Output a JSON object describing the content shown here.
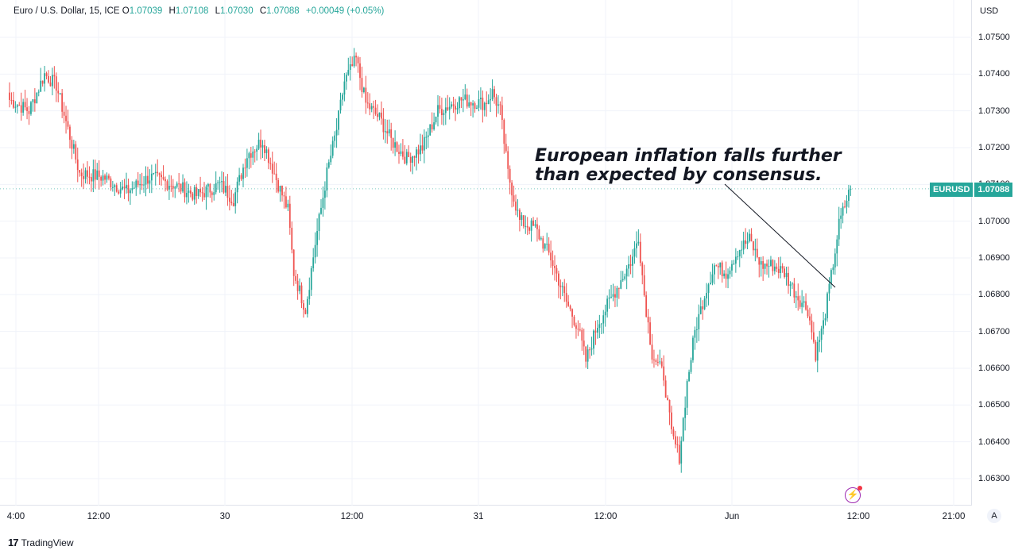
{
  "legend": {
    "symbol": "Euro / U.S. Dollar, 15, ICE",
    "o_label": "O",
    "o_value": "1.07039",
    "h_label": "H",
    "h_value": "1.07108",
    "l_label": "L",
    "l_value": "1.07030",
    "c_label": "C",
    "c_value": "1.07088",
    "change": "+0.00049 (+0.05%)"
  },
  "currency": "USD",
  "last_price": {
    "symbol": "EURUSD",
    "value": "1.07088"
  },
  "annotation": [
    "European inflation falls further",
    "than expected by consensus."
  ],
  "auto_button": "A",
  "brand": {
    "logo": "17",
    "name": "TradingView"
  },
  "colors": {
    "up": "#26a69a",
    "down": "#ef5350",
    "grid": "#f0f3fa",
    "alert": "#9c27b0"
  },
  "icons": {
    "alert": "lightning-alert-icon",
    "logo": "tradingview-logo-icon"
  },
  "chart_data": {
    "type": "candlestick",
    "title": "Euro / U.S. Dollar, 15, ICE",
    "ylabel": "USD",
    "ylim": [
      1.0626,
      1.0758
    ],
    "y_ticks": [
      "1.07500",
      "1.07400",
      "1.07300",
      "1.07200",
      "1.07100",
      "1.07000",
      "1.06900",
      "1.06800",
      "1.06700",
      "1.06600",
      "1.06500",
      "1.06400",
      "1.06300"
    ],
    "x_ticks": [
      "4:00",
      "12:00",
      "30",
      "12:00",
      "31",
      "12:00",
      "Jun",
      "12:00",
      "21:00"
    ],
    "grid": true,
    "close_path": [
      [
        0,
        1.0733
      ],
      [
        10,
        1.073
      ],
      [
        18,
        1.074
      ],
      [
        24,
        1.0737
      ],
      [
        30,
        1.0725
      ],
      [
        36,
        1.0713
      ],
      [
        48,
        1.0712
      ],
      [
        60,
        1.0708
      ],
      [
        72,
        1.0712
      ],
      [
        84,
        1.071
      ],
      [
        96,
        1.0707
      ],
      [
        108,
        1.071
      ],
      [
        115,
        1.0706
      ],
      [
        122,
        1.0718
      ],
      [
        130,
        1.0722
      ],
      [
        138,
        1.071
      ],
      [
        143,
        1.0703
      ],
      [
        146,
        1.0686
      ],
      [
        152,
        1.0676
      ],
      [
        157,
        1.0694
      ],
      [
        163,
        1.0713
      ],
      [
        168,
        1.0725
      ],
      [
        172,
        1.0738
      ],
      [
        178,
        1.0744
      ],
      [
        183,
        1.0732
      ],
      [
        190,
        1.0728
      ],
      [
        196,
        1.0722
      ],
      [
        204,
        1.0717
      ],
      [
        212,
        1.072
      ],
      [
        220,
        1.073
      ],
      [
        232,
        1.0733
      ],
      [
        244,
        1.0732
      ],
      [
        248,
        1.0735
      ],
      [
        252,
        1.073
      ],
      [
        256,
        1.0713
      ],
      [
        262,
        1.07
      ],
      [
        270,
        1.0698
      ],
      [
        278,
        1.069
      ],
      [
        286,
        1.0678
      ],
      [
        292,
        1.0671
      ],
      [
        296,
        1.0662
      ],
      [
        302,
        1.0672
      ],
      [
        308,
        1.0678
      ],
      [
        314,
        1.0684
      ],
      [
        320,
        1.069
      ],
      [
        323,
        1.0696
      ],
      [
        326,
        1.068
      ],
      [
        330,
        1.0664
      ],
      [
        336,
        1.0658
      ],
      [
        340,
        1.0642
      ],
      [
        344,
        1.0636
      ],
      [
        348,
        1.0656
      ],
      [
        352,
        1.067
      ],
      [
        358,
        1.0682
      ],
      [
        362,
        1.0688
      ],
      [
        368,
        1.0686
      ],
      [
        374,
        1.0692
      ],
      [
        380,
        1.0695
      ],
      [
        386,
        1.0688
      ],
      [
        392,
        1.0688
      ],
      [
        398,
        1.0686
      ],
      [
        404,
        1.068
      ],
      [
        410,
        1.0676
      ],
      [
        414,
        1.0664
      ],
      [
        418,
        1.0672
      ],
      [
        422,
        1.0685
      ],
      [
        426,
        1.0699
      ],
      [
        430,
        1.0706
      ],
      [
        432,
        1.07088
      ]
    ]
  }
}
